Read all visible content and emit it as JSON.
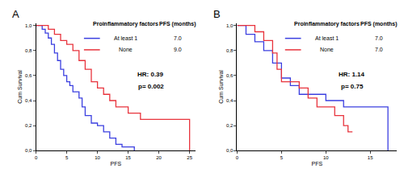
{
  "chart_data": [
    {
      "type": "line",
      "panel": "A",
      "line_style": "step",
      "xlabel": "PFS",
      "ylabel": "Cum Survival",
      "legend_title": "Proinflammatory factors",
      "legend_value_header": "PFS (months)",
      "annotations": [
        "HR: 0.39",
        "p= 0.002"
      ],
      "xlim": [
        0,
        26
      ],
      "xticks": [
        0,
        5,
        10,
        15,
        20,
        25
      ],
      "ylim": [
        0,
        1.02
      ],
      "yticks": [
        {
          "value": 0,
          "label": "0,0"
        },
        {
          "value": 0.2,
          "label": "0,2"
        },
        {
          "value": 0.4,
          "label": "0,4"
        },
        {
          "value": 0.6,
          "label": "0,6"
        },
        {
          "value": 0.8,
          "label": "0,8"
        },
        {
          "value": 1,
          "label": "1,0"
        }
      ],
      "series": [
        {
          "name": "At least 1",
          "color": "#3b3fe0",
          "median_pfs": 7,
          "median_pfs_label": "7.0",
          "x": [
            0,
            1,
            1.5,
            2,
            2.5,
            3,
            3.5,
            4,
            4.5,
            5,
            5.5,
            6,
            7,
            7.5,
            8,
            9,
            10,
            11,
            12,
            13,
            14,
            16
          ],
          "values": [
            1,
            0.97,
            0.94,
            0.9,
            0.85,
            0.78,
            0.72,
            0.65,
            0.6,
            0.55,
            0.52,
            0.47,
            0.42,
            0.35,
            0.28,
            0.22,
            0.2,
            0.15,
            0.1,
            0.05,
            0.03,
            0
          ]
        },
        {
          "name": "None",
          "color": "#e8333c",
          "median_pfs": 9,
          "median_pfs_label": "9.0",
          "x": [
            0,
            2,
            3,
            4,
            5,
            6,
            7,
            8,
            9,
            10,
            11,
            12,
            13,
            15,
            17,
            25,
            25
          ],
          "values": [
            1,
            0.97,
            0.93,
            0.88,
            0.85,
            0.8,
            0.72,
            0.65,
            0.55,
            0.5,
            0.45,
            0.4,
            0.35,
            0.3,
            0.25,
            0.25,
            0
          ]
        }
      ]
    },
    {
      "type": "line",
      "panel": "B",
      "line_style": "step",
      "xlabel": "PFS",
      "ylabel": "Cum Survival",
      "legend_title": "Proinflammatory factors",
      "legend_value_header": "PFS (months)",
      "annotations": [
        "HR: 1.14",
        "p= 0.75"
      ],
      "xlim": [
        0,
        18
      ],
      "xticks": [
        0,
        5,
        10,
        15
      ],
      "ylim": [
        0,
        1.02
      ],
      "yticks": [
        {
          "value": 0,
          "label": "0,0"
        },
        {
          "value": 0.2,
          "label": "0,2"
        },
        {
          "value": 0.4,
          "label": "0,4"
        },
        {
          "value": 0.6,
          "label": "0,6"
        },
        {
          "value": 0.8,
          "label": "0,8"
        },
        {
          "value": 1,
          "label": "1,0"
        }
      ],
      "series": [
        {
          "name": "At least 1",
          "color": "#3b3fe0",
          "median_pfs": 7,
          "median_pfs_label": "7.0",
          "x": [
            0,
            1,
            2,
            3,
            4,
            5,
            6,
            7,
            10,
            12,
            17,
            17
          ],
          "values": [
            1,
            0.93,
            0.87,
            0.8,
            0.7,
            0.58,
            0.52,
            0.45,
            0.4,
            0.35,
            0.35,
            0
          ]
        },
        {
          "name": "None",
          "color": "#e8333c",
          "median_pfs": 7,
          "median_pfs_label": "7.0",
          "x": [
            0,
            2,
            3,
            4,
            4.5,
            5,
            7,
            8,
            9,
            11,
            12,
            12.5,
            13
          ],
          "values": [
            1,
            0.95,
            0.88,
            0.78,
            0.65,
            0.55,
            0.5,
            0.42,
            0.35,
            0.28,
            0.2,
            0.15,
            0.15
          ]
        }
      ]
    }
  ]
}
